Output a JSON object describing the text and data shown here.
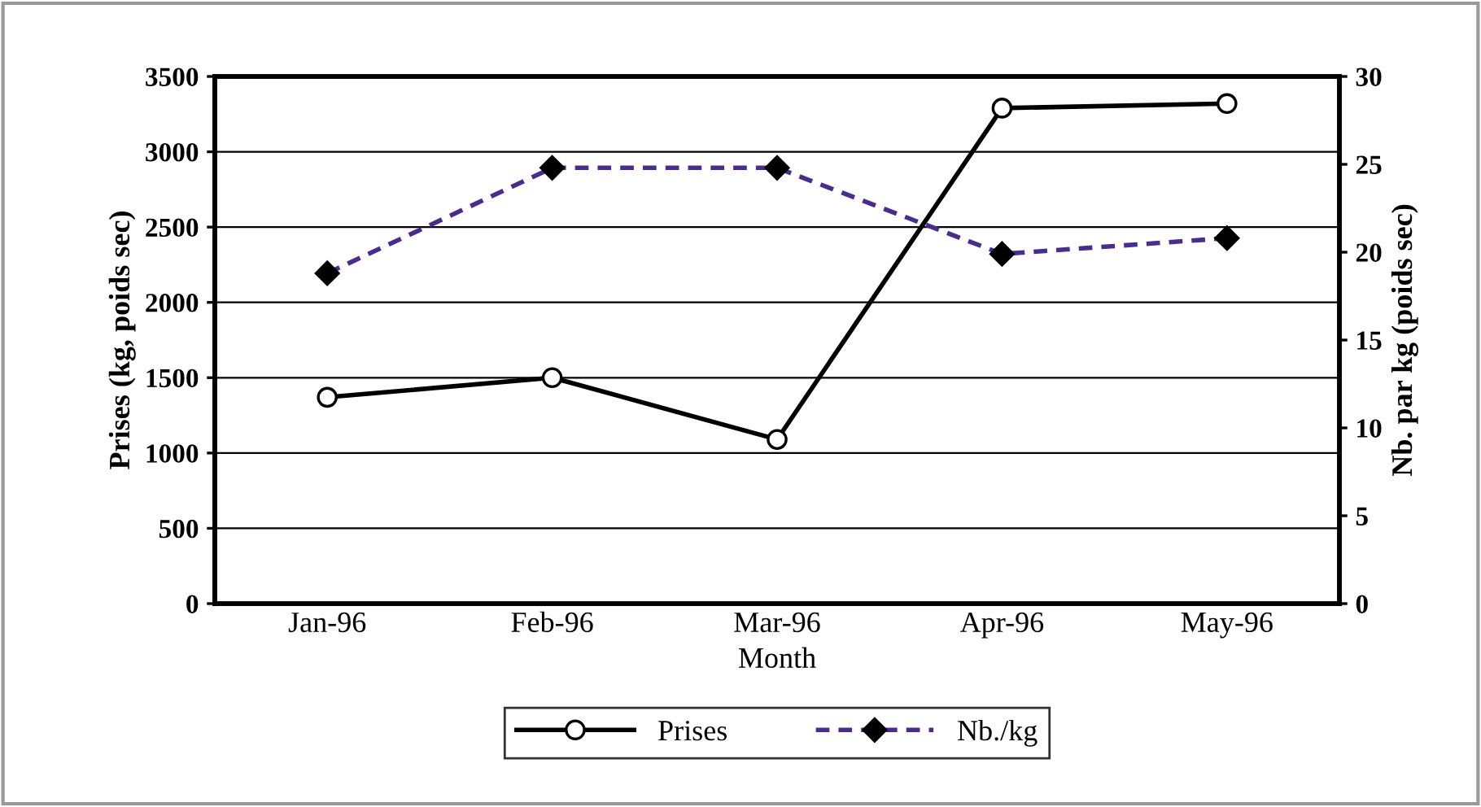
{
  "chart_data": {
    "type": "line",
    "xlabel": "Month",
    "ylabel": "Prises (kg, poids sec)",
    "y2label": "Nb. par kg (poids sec)",
    "categories": [
      "Jan-96",
      "Feb-96",
      "Mar-96",
      "Apr-96",
      "May-96"
    ],
    "series": [
      {
        "name": "Prises",
        "color": "#000000",
        "values": [
          1370,
          1500,
          1090,
          3290,
          3320
        ],
        "marker": "circle",
        "line_style": "solid"
      },
      {
        "name": "Nb./kg",
        "color": "#4b2c8c",
        "values": [
          18.8,
          24.8,
          24.8,
          19.9,
          20.8
        ],
        "axis": "y2",
        "marker": "diamond",
        "line_style": "dashed"
      }
    ],
    "ylim": [
      0,
      3500
    ],
    "yticks": [
      0,
      500,
      1000,
      1500,
      2000,
      2500,
      3000,
      3500
    ],
    "y2lim": [
      0,
      30
    ],
    "y2ticks": [
      0,
      5,
      10,
      15,
      20,
      25,
      30
    ],
    "grid": "y",
    "legend": "bottom"
  }
}
